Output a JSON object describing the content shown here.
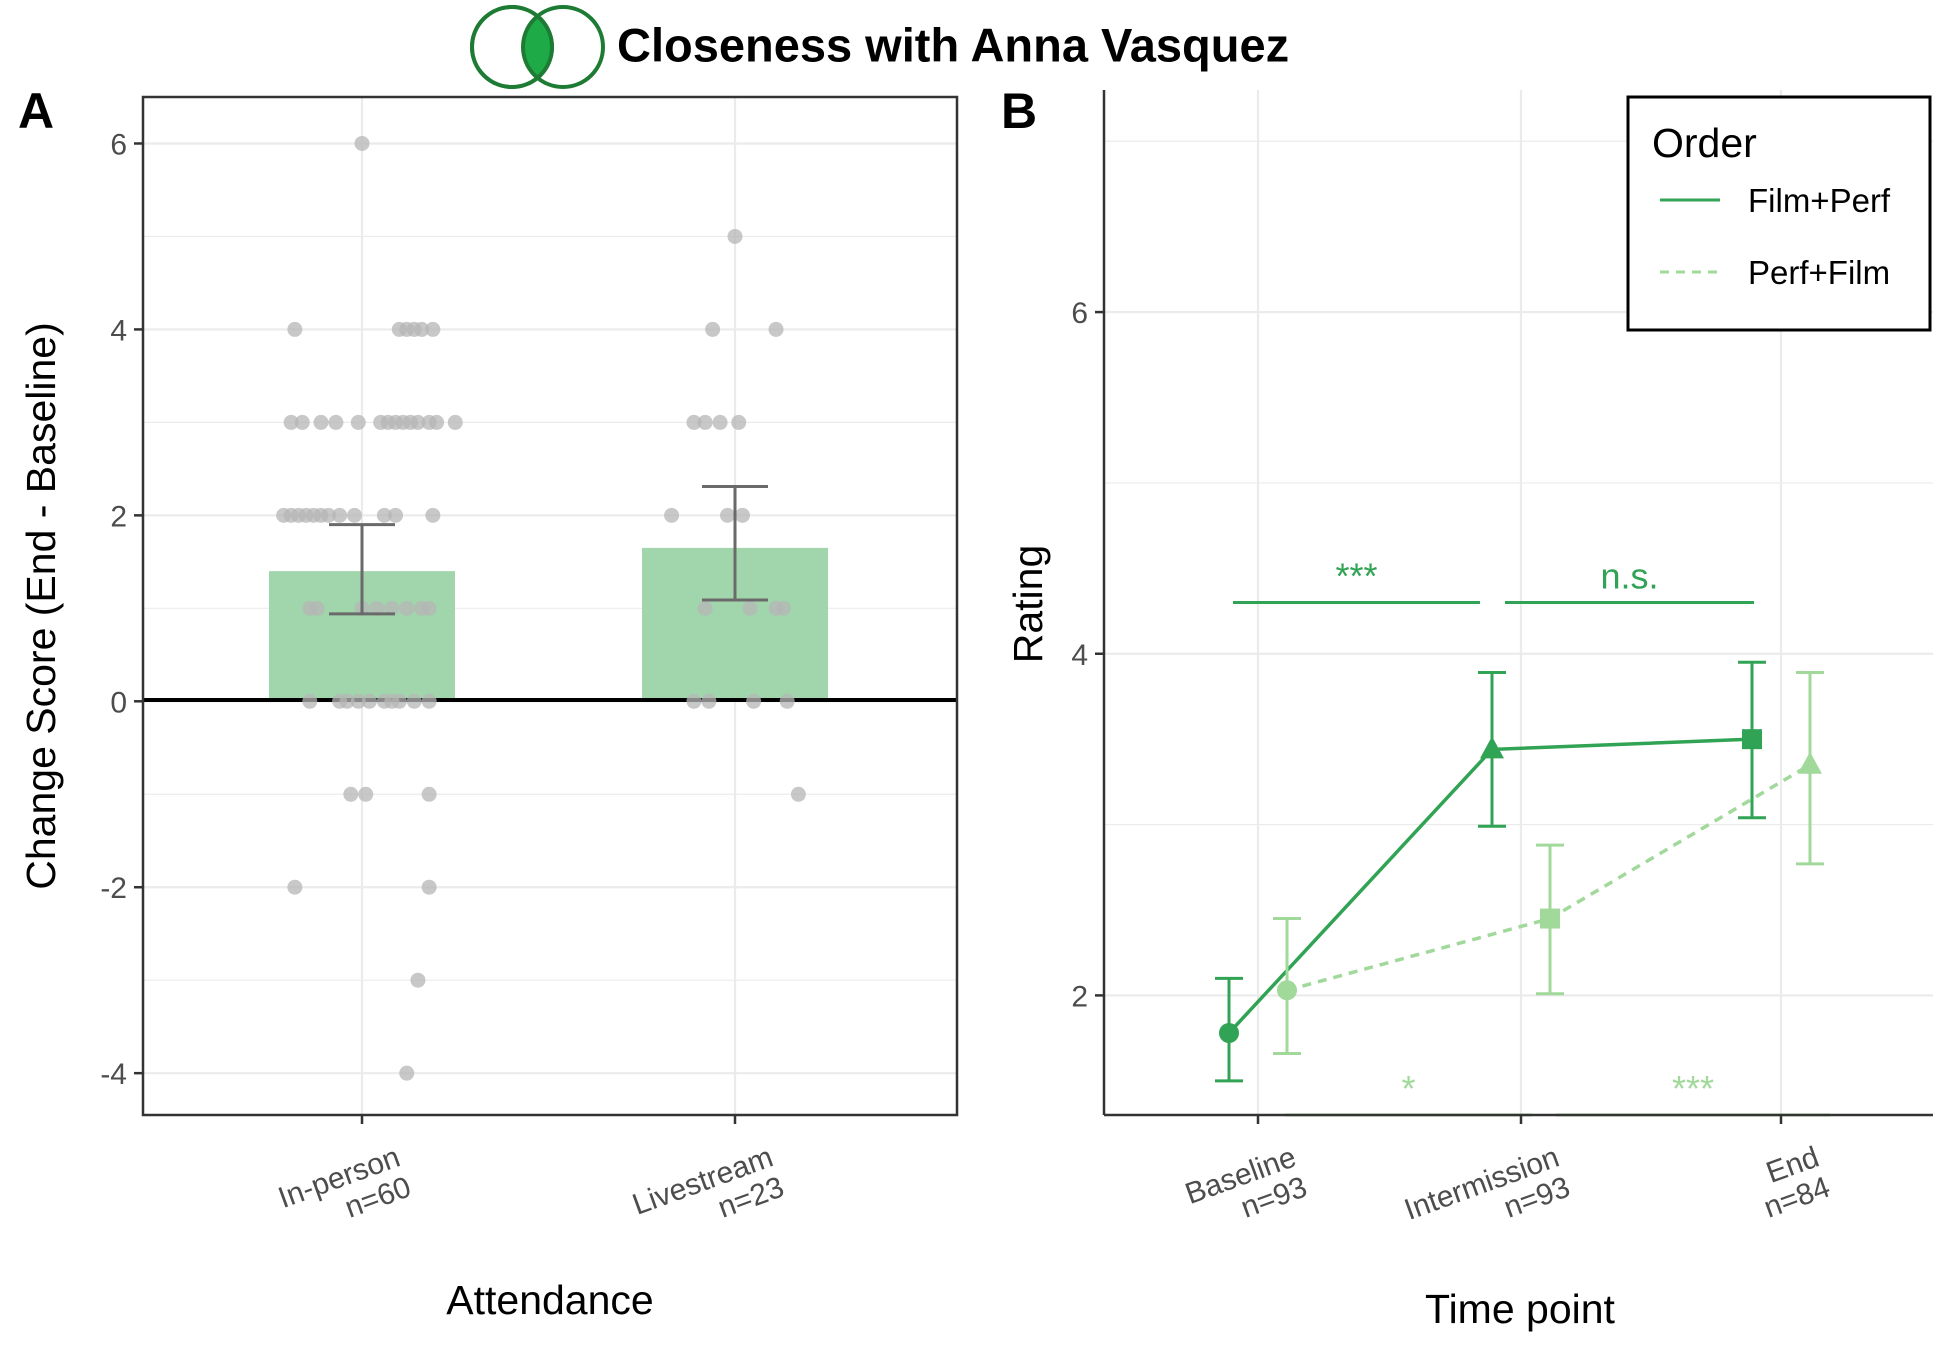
{
  "title": "Closeness with Anna Vasquez",
  "colors": {
    "dark_green": "#31a354",
    "light_green": "#a1d99b",
    "bar_fill": "#a1d6ad",
    "point_gray": "#b5b5b5",
    "error_gray": "#6a6a6a",
    "logo_green": "#1e7b34",
    "logo_fill": "#1faa48"
  },
  "chart_data": [
    {
      "panel": "A",
      "type": "bar",
      "xlabel": "Attendance",
      "ylabel": "Change Score (End - Baseline)",
      "ylim": [
        -4.45,
        6.5
      ],
      "yticks": [
        -4,
        -2,
        0,
        2,
        4,
        6
      ],
      "categories": [
        {
          "label": "In-person",
          "n": "n=60",
          "mean": 1.4,
          "ci_low": 0.94,
          "ci_high": 1.9
        },
        {
          "label": "Livestream",
          "n": "n=23",
          "mean": 1.65,
          "ci_low": 1.09,
          "ci_high": 2.31
        }
      ],
      "points": [
        [
          0,
          6.0
        ],
        [
          -0.18,
          4.0
        ],
        [
          0.1,
          4.0
        ],
        [
          0.12,
          4.0
        ],
        [
          0.14,
          4.0
        ],
        [
          0.16,
          4.0
        ],
        [
          0.19,
          4.0
        ],
        [
          -0.19,
          3.0
        ],
        [
          -0.16,
          3.0
        ],
        [
          -0.11,
          3.0
        ],
        [
          -0.07,
          3.0
        ],
        [
          -0.01,
          3.0
        ],
        [
          0.05,
          3.0
        ],
        [
          0.07,
          3.0
        ],
        [
          0.09,
          3.0
        ],
        [
          0.11,
          3.0
        ],
        [
          0.13,
          3.0
        ],
        [
          0.15,
          3.0
        ],
        [
          0.18,
          3.0
        ],
        [
          0.2,
          3.0
        ],
        [
          0.25,
          3.0
        ],
        [
          -0.21,
          2.0
        ],
        [
          -0.19,
          2.0
        ],
        [
          -0.17,
          2.0
        ],
        [
          -0.15,
          2.0
        ],
        [
          -0.13,
          2.0
        ],
        [
          -0.11,
          2.0
        ],
        [
          -0.09,
          2.0
        ],
        [
          -0.06,
          2.0
        ],
        [
          -0.02,
          2.0
        ],
        [
          0.06,
          2.0
        ],
        [
          0.09,
          2.0
        ],
        [
          0.19,
          2.0
        ],
        [
          -0.14,
          1.0
        ],
        [
          -0.12,
          1.0
        ],
        [
          0.0,
          1.0
        ],
        [
          0.04,
          1.0
        ],
        [
          0.08,
          1.0
        ],
        [
          0.12,
          1.0
        ],
        [
          0.16,
          1.0
        ],
        [
          0.18,
          1.0
        ],
        [
          -0.14,
          0.0
        ],
        [
          -0.06,
          0.0
        ],
        [
          -0.04,
          0.0
        ],
        [
          -0.01,
          0.0
        ],
        [
          0.02,
          0.0
        ],
        [
          0.06,
          0.0
        ],
        [
          0.08,
          0.0
        ],
        [
          0.1,
          0.0
        ],
        [
          0.14,
          0.0
        ],
        [
          0.18,
          0.0
        ],
        [
          -0.03,
          -1.0
        ],
        [
          0.01,
          -1.0
        ],
        [
          0.18,
          -1.0
        ],
        [
          -0.18,
          -2.0
        ],
        [
          0.18,
          -2.0
        ],
        [
          0.15,
          -3.0
        ],
        [
          0.12,
          -4.0
        ],
        [
          1.0,
          5.0
        ],
        [
          0.94,
          4.0
        ],
        [
          1.11,
          4.0
        ],
        [
          0.89,
          3.0
        ],
        [
          0.92,
          3.0
        ],
        [
          0.96,
          3.0
        ],
        [
          1.01,
          3.0
        ],
        [
          0.83,
          2.0
        ],
        [
          0.98,
          2.0
        ],
        [
          1.02,
          2.0
        ],
        [
          0.92,
          1.0
        ],
        [
          1.04,
          1.0
        ],
        [
          1.11,
          1.0
        ],
        [
          1.13,
          1.0
        ],
        [
          0.89,
          0.0
        ],
        [
          0.93,
          0.0
        ],
        [
          1.05,
          0.0
        ],
        [
          1.14,
          0.0
        ],
        [
          1.17,
          -1.0
        ]
      ]
    },
    {
      "panel": "B",
      "type": "line",
      "xlabel": "Time point",
      "ylabel": "Rating",
      "ylim": [
        1.3,
        7.3
      ],
      "yticks": [
        2,
        4,
        6
      ],
      "categories": [
        {
          "label": "Baseline",
          "n": "n=93"
        },
        {
          "label": "Intermission",
          "n": "n=93"
        },
        {
          "label": "End",
          "n": "n=84"
        }
      ],
      "legend_title": "Order",
      "legend_position": "top-right",
      "series": [
        {
          "name": "Film+Perf",
          "style": "solid",
          "values": [
            1.78,
            3.44,
            3.5
          ],
          "ci_low": [
            1.5,
            2.99,
            3.04
          ],
          "ci_high": [
            2.1,
            3.89,
            3.95
          ]
        },
        {
          "name": "Perf+Film",
          "style": "dashed",
          "values": [
            2.03,
            2.45,
            3.35
          ],
          "ci_low": [
            1.66,
            2.01,
            2.77
          ],
          "ci_high": [
            2.45,
            2.88,
            3.89
          ]
        }
      ],
      "annotations": [
        {
          "text": "***",
          "series": "Film+Perf",
          "from": 0,
          "to": 1,
          "y": 4.3
        },
        {
          "text": "n.s.",
          "series": "Film+Perf",
          "from": 1,
          "to": 2,
          "y": 4.3
        },
        {
          "text": "*",
          "series": "Perf+Film",
          "from": 0,
          "to": 1,
          "y": 1.3
        },
        {
          "text": "***",
          "series": "Perf+Film",
          "from": 1,
          "to": 2,
          "y": 1.3
        }
      ]
    }
  ]
}
